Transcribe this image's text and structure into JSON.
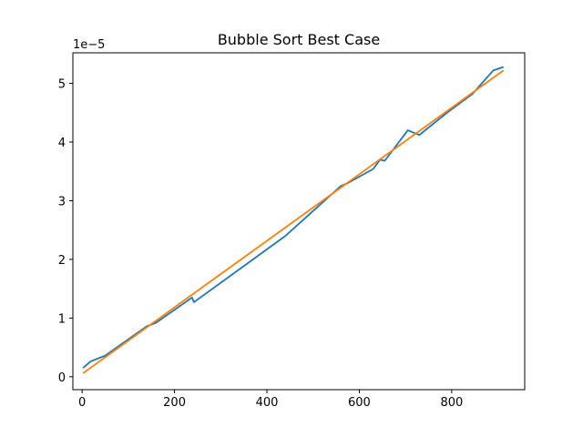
{
  "chart_data": {
    "type": "line",
    "title": "Bubble Sort Best Case",
    "xlabel": "",
    "ylabel": "",
    "y_offset_label": "1e−5",
    "xlim": [
      -20,
      958
    ],
    "ylim": [
      -0.22,
      5.52
    ],
    "grid": false,
    "x_ticks": [
      0,
      200,
      400,
      600,
      800
    ],
    "y_ticks": [
      0,
      1,
      2,
      3,
      4,
      5
    ],
    "series": [
      {
        "color": "#1f77b4",
        "x": [
          2,
          18,
          50,
          140,
          160,
          238,
          242,
          440,
          560,
          575,
          630,
          645,
          655,
          705,
          730,
          790,
          845,
          890,
          912
        ],
        "y": [
          0.15,
          0.26,
          0.36,
          0.86,
          0.92,
          1.35,
          1.27,
          2.4,
          3.25,
          3.3,
          3.54,
          3.7,
          3.68,
          4.2,
          4.12,
          4.5,
          4.82,
          5.22,
          5.28
        ]
      },
      {
        "color": "#ff7f0e",
        "x": [
          2,
          912
        ],
        "y": [
          0.06,
          5.22
        ]
      }
    ]
  }
}
